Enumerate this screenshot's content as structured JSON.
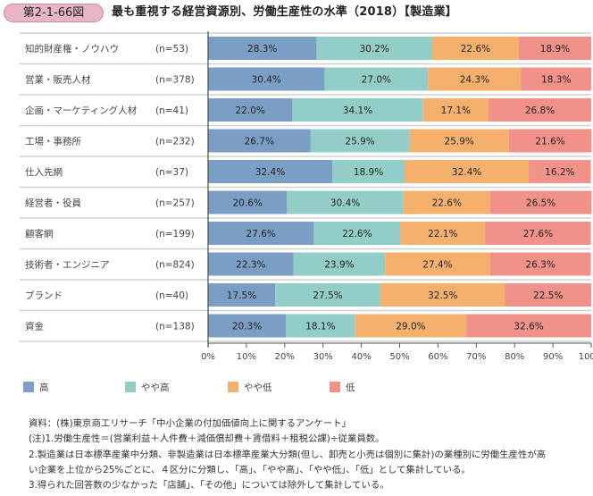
{
  "figure": {
    "badge": "第2-1-66図",
    "title": "最も重視する経営資源別、労働生産性の水準（2018）【製造業】"
  },
  "chart_data": {
    "type": "bar",
    "orientation": "horizontal",
    "stacked": true,
    "title": "最も重視する経営資源別、労働生産性の水準（2018）【製造業】",
    "xlabel": "",
    "ylabel": "",
    "xlim": [
      0,
      100
    ],
    "x_ticks": [
      "0%",
      "10%",
      "20%",
      "30%",
      "40%",
      "50%",
      "60%",
      "70%",
      "80%",
      "90%",
      "100%"
    ],
    "categories": [
      "知的財産権・ノウハウ",
      "営業・販売人材",
      "企画・マーケティング人材",
      "工場・事務所",
      "仕入先網",
      "経営者・役員",
      "顧客網",
      "技術者・エンジニア",
      "ブランド",
      "資金"
    ],
    "n_labels": [
      "(n=53)",
      "(n=378)",
      "(n=41)",
      "(n=232)",
      "(n=37)",
      "(n=257)",
      "(n=199)",
      "(n=824)",
      "(n=40)",
      "(n=138)"
    ],
    "series": [
      {
        "name": "高",
        "color": "#7b9ec4",
        "values": [
          28.3,
          30.4,
          22.0,
          26.7,
          32.4,
          20.6,
          27.6,
          22.3,
          17.5,
          20.3
        ]
      },
      {
        "name": "やや高",
        "color": "#92cdc8",
        "values": [
          30.2,
          27.0,
          34.1,
          25.9,
          18.9,
          30.4,
          22.6,
          23.9,
          27.5,
          18.1
        ]
      },
      {
        "name": "やや低",
        "color": "#f6b06e",
        "values": [
          22.6,
          24.3,
          17.1,
          25.9,
          32.4,
          22.6,
          22.1,
          27.4,
          32.5,
          29.0
        ]
      },
      {
        "name": "低",
        "color": "#f0918a",
        "values": [
          18.9,
          18.3,
          26.8,
          21.6,
          16.2,
          26.5,
          27.6,
          26.3,
          22.5,
          32.6
        ]
      }
    ],
    "value_format": "%",
    "legend": "bottom",
    "grid": false
  },
  "notes": [
    "資料：(株)東京商工リサーチ「中小企業の付加価値向上に関するアンケート」",
    "(注)1.労働生産性＝(営業利益＋人件費＋減価償却費＋賃借料＋租税公課)÷従業員数。",
    "2.製造業は日本標準産業中分類、非製造業は日本標準産業大分類(但し、卸売と小売は個別に集計)の業種別に労働生産性が高",
    "い企業を上位から25%ごとに、４区分に分類し、「高」、「やや高」、「やや低」、「低」として集計している。",
    "3.得られた回答数の少なかった「店舗」、「その他」については除外して集計している。"
  ]
}
